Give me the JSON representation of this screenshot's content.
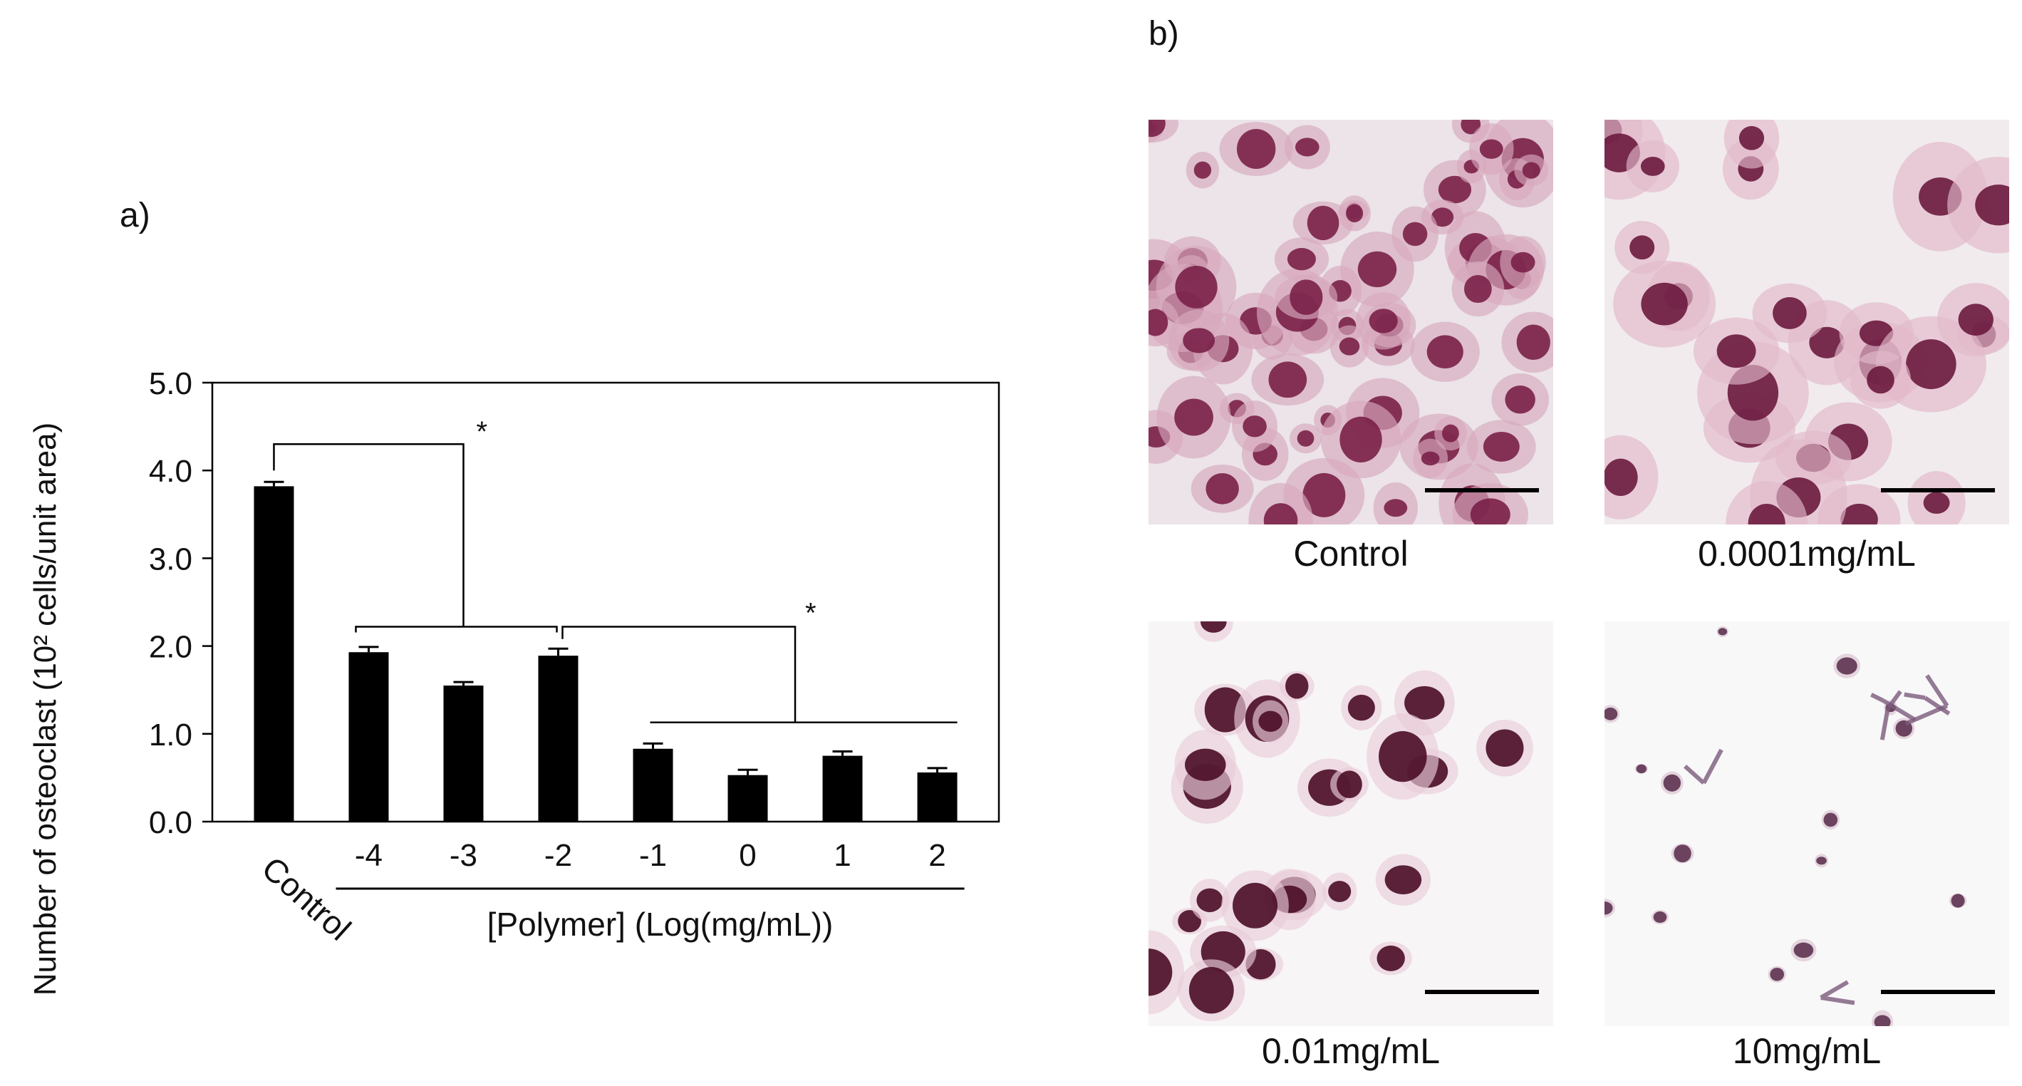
{
  "panel_a_label": "a)",
  "panel_b_label": "b)",
  "chart_data": {
    "type": "bar",
    "categories": [
      "Control",
      "-4",
      "-3",
      "-2",
      "-1",
      "0",
      "1",
      "2"
    ],
    "values": [
      3.82,
      1.93,
      1.55,
      1.89,
      0.83,
      0.53,
      0.75,
      0.56
    ],
    "errors": [
      0.05,
      0.06,
      0.04,
      0.08,
      0.06,
      0.06,
      0.05,
      0.05
    ],
    "ylabel": "Number of osteoclast (10² cells/unit area)",
    "xlabel": "[Polymer] (Log(mg/mL))",
    "ylim": [
      0,
      5
    ],
    "yticks": [
      "0.0",
      "1.0",
      "2.0",
      "3.0",
      "4.0",
      "5.0"
    ],
    "bar_color": "#000000",
    "significance_marker": "*",
    "significance": [
      {
        "from": [
          "Control"
        ],
        "to": [
          "-4",
          "-3",
          "-2"
        ],
        "label": "*"
      },
      {
        "from": [
          "-2"
        ],
        "to": [
          "-1",
          "0",
          "1",
          "2"
        ],
        "label": "*"
      }
    ]
  },
  "micrographs": [
    {
      "caption": "Control",
      "stain_color": "#8a2a55"
    },
    {
      "caption": "0.0001mg/mL",
      "stain_color": "#8a2a55"
    },
    {
      "caption": "0.01mg/mL",
      "stain_color": "#5a1030"
    },
    {
      "caption": "10mg/mL",
      "stain_color": "#6a3a5a"
    }
  ]
}
